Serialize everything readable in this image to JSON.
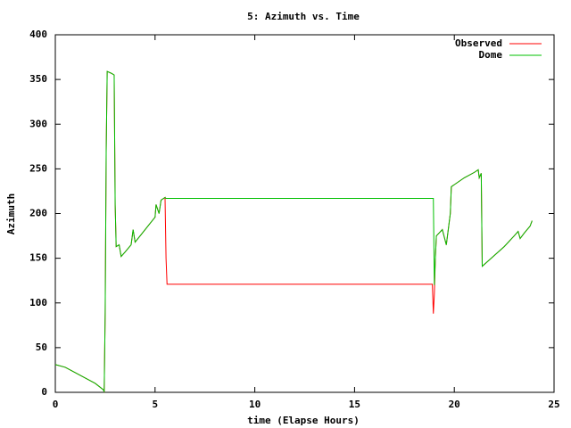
{
  "chart_data": {
    "type": "line",
    "title": "5: Azimuth vs. Time",
    "x_label": "time (Elapse Hours)",
    "y_label": "Azimuth",
    "x": [
      0,
      0.5,
      1,
      1.5,
      2,
      2.4,
      2.45,
      2.5,
      2.55,
      2.6,
      2.8,
      2.95,
      3.0,
      3.05,
      3.2,
      3.3,
      3.5,
      3.8,
      3.9,
      4.0,
      4.5,
      5.0,
      5.05,
      5.2,
      5.3,
      5.5,
      5.55,
      5.6,
      18.9,
      18.95,
      19.0,
      19.05,
      19.1,
      19.4,
      19.6,
      19.8,
      19.85,
      20.5,
      21.0,
      21.2,
      21.25,
      21.35,
      21.4,
      21.6,
      22.0,
      22.5,
      23.0,
      23.2,
      23.3,
      23.5,
      23.8,
      23.9
    ],
    "series": [
      {
        "name": "Observed",
        "color": "#ff0000",
        "values": [
          31,
          28,
          22,
          16,
          10,
          3,
          1,
          90,
          270,
          359,
          357,
          355,
          210,
          163,
          165,
          152,
          157,
          165,
          182,
          168,
          182,
          196,
          210,
          200,
          215,
          218,
          150,
          121,
          121,
          88,
          110,
          150,
          175,
          182,
          165,
          200,
          230,
          240,
          246,
          249,
          240,
          245,
          141,
          145,
          153,
          163,
          175,
          180,
          172,
          178,
          186,
          192
        ]
      },
      {
        "name": "Dome",
        "color": "#00c000",
        "values": [
          31,
          28,
          22,
          16,
          10,
          3,
          1,
          90,
          270,
          359,
          357,
          355,
          210,
          163,
          165,
          152,
          157,
          165,
          182,
          168,
          182,
          196,
          210,
          200,
          215,
          218,
          217,
          217,
          217,
          217,
          120,
          150,
          175,
          182,
          165,
          200,
          230,
          240,
          246,
          249,
          240,
          245,
          141,
          145,
          153,
          163,
          175,
          180,
          172,
          178,
          186,
          192
        ]
      }
    ],
    "xlim": [
      0,
      25
    ],
    "xticks": [
      0,
      5,
      10,
      15,
      20,
      25
    ],
    "ylim": [
      0,
      400
    ],
    "yticks": [
      0,
      50,
      100,
      150,
      200,
      250,
      300,
      350,
      400
    ],
    "legend": "top-right",
    "grid": false
  }
}
